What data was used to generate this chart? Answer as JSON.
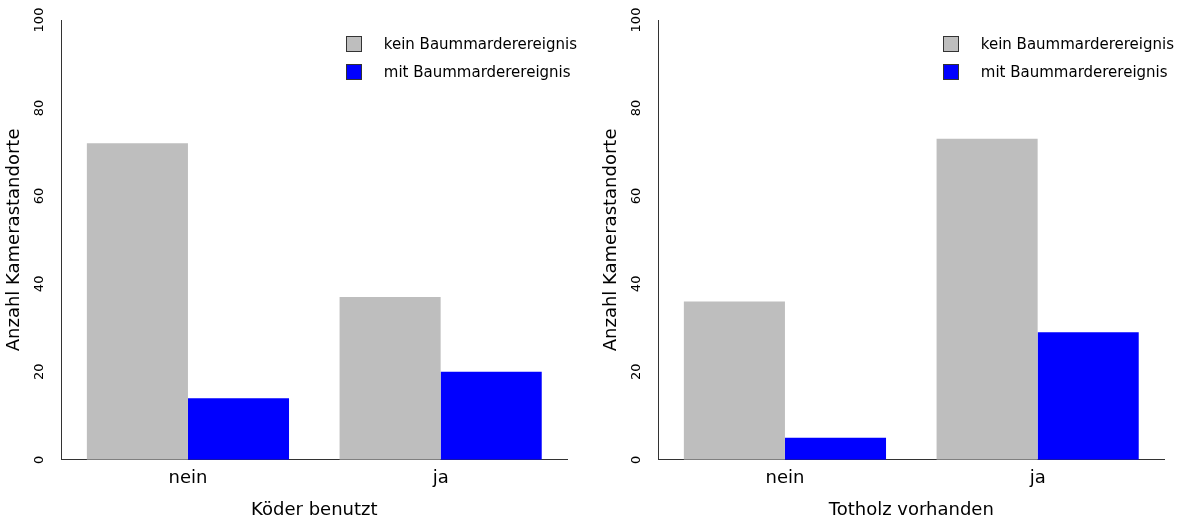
{
  "chart_data": [
    {
      "type": "bar",
      "categories": [
        "nein",
        "ja"
      ],
      "xlabel": "Köder benutzt",
      "ylabel": "Anzahl Kamerastandorte",
      "ylim": [
        0,
        100
      ],
      "yticks": [
        0,
        20,
        40,
        60,
        80,
        100
      ],
      "grid": false,
      "legend": "top right",
      "series": [
        {
          "name": "kein Baummarderereignis",
          "color": "#bebebe",
          "values": [
            72,
            37
          ]
        },
        {
          "name": "mit Baummarderereignis",
          "color": "#0000ff",
          "values": [
            14,
            20
          ]
        }
      ]
    },
    {
      "type": "bar",
      "categories": [
        "nein",
        "ja"
      ],
      "xlabel": "Totholz vorhanden",
      "ylabel": "Anzahl Kamerastandorte",
      "ylim": [
        0,
        100
      ],
      "yticks": [
        0,
        20,
        40,
        60,
        80,
        100
      ],
      "grid": false,
      "legend": "top right",
      "series": [
        {
          "name": "kein Baummarderereignis",
          "color": "#bebebe",
          "values": [
            36,
            73
          ]
        },
        {
          "name": "mit Baummarderereignis",
          "color": "#0000ff",
          "values": [
            5,
            29
          ]
        }
      ]
    }
  ]
}
